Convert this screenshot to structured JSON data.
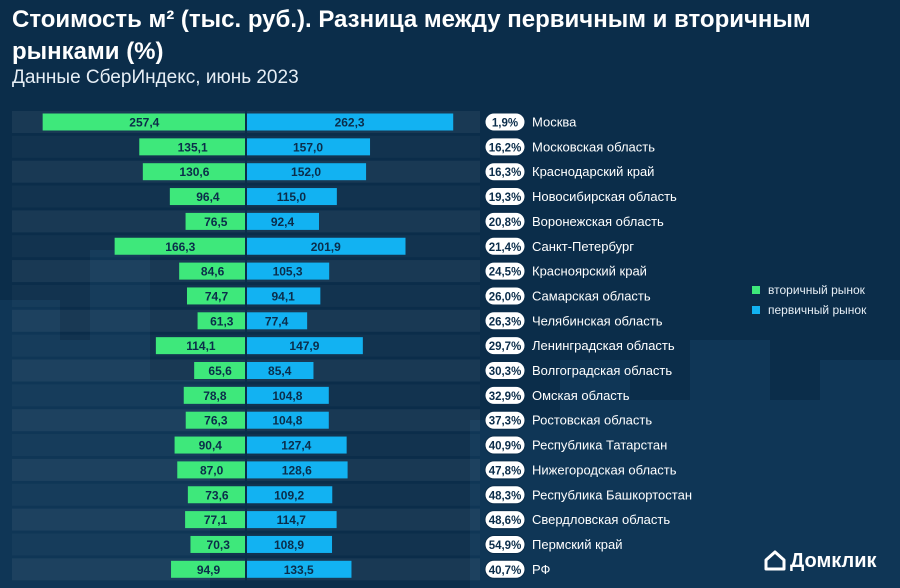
{
  "title": "Стоимость м² (тыс. руб.). Разница между первичным и вторичным рынками (%)",
  "subtitle": "Данные СберИндекс, июнь 2023",
  "legend": {
    "secondary": "вторичный рынок",
    "primary": "первичный рынок"
  },
  "brand": "Домклик",
  "colors": {
    "background": "#0b2d4a",
    "secondary": "#3ee87b",
    "primary": "#12b2f2",
    "bar_text": "#0b2d4a"
  },
  "chart_data": {
    "type": "bar",
    "orientation": "horizontal",
    "layout": "diverging",
    "categories": [
      "Москва",
      "Московская область",
      "Краснодарский край",
      "Новосибирская область",
      "Воронежская область",
      "Санкт-Петербург",
      "Красноярский край",
      "Самарская область",
      "Челябинская область",
      "Ленинградская область",
      "Волгоградская область",
      "Омская область",
      "Ростовская область",
      "Республика Татарстан",
      "Нижегородская область",
      "Республика Башкортостан",
      "Свердловская область",
      "Пермский край",
      "РФ"
    ],
    "series": [
      {
        "name": "вторичный рынок",
        "values": [
          257.4,
          135.1,
          130.6,
          96.4,
          76.5,
          166.3,
          84.6,
          74.7,
          61.3,
          114.1,
          65.6,
          78.8,
          76.3,
          90.4,
          87.0,
          73.6,
          77.1,
          70.3,
          94.9
        ]
      },
      {
        "name": "первичный рынок",
        "values": [
          262.3,
          157.0,
          152.0,
          115.0,
          92.4,
          201.9,
          105.3,
          94.1,
          77.4,
          147.9,
          85.4,
          104.8,
          104.8,
          127.4,
          128.6,
          109.2,
          114.7,
          108.9,
          133.5
        ]
      }
    ],
    "value_labels": {
      "secondary": [
        "257,4",
        "135,1",
        "130,6",
        "96,4",
        "76,5",
        "166,3",
        "84,6",
        "74,7",
        "61,3",
        "114,1",
        "65,6",
        "78,8",
        "76,3",
        "90,4",
        "87,0",
        "73,6",
        "77,1",
        "70,3",
        "94,9"
      ],
      "primary": [
        "262,3",
        "157,0",
        "152,0",
        "115,0",
        "92,4",
        "201,9",
        "105,3",
        "94,1",
        "77,4",
        "147,9",
        "85,4",
        "104,8",
        "104,8",
        "127,4",
        "128,6",
        "109,2",
        "114,7",
        "108,9",
        "133,5"
      ]
    },
    "difference_labels": [
      "1,9%",
      "16,2%",
      "16,3%",
      "19,3%",
      "20,8%",
      "21,4%",
      "24,5%",
      "26,0%",
      "26,3%",
      "29,7%",
      "30,3%",
      "32,9%",
      "37,3%",
      "40,9%",
      "47,8%",
      "48,3%",
      "48,6%",
      "54,9%",
      "40,7%"
    ],
    "legend_placement": "right",
    "grid": false
  }
}
